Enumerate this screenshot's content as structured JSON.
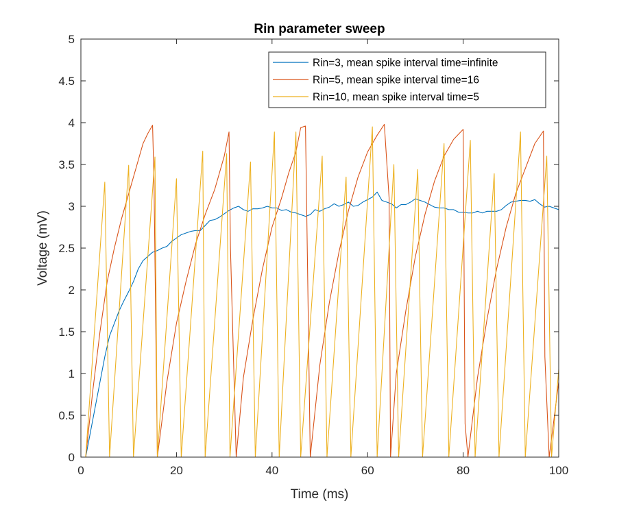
{
  "chart_data": {
    "type": "line",
    "title": "Rin parameter sweep",
    "xlabel": "Time (ms)",
    "ylabel": "Voltage (mV)",
    "xlim": [
      0,
      100
    ],
    "ylim": [
      0,
      5
    ],
    "x_ticks": [
      "0",
      "20",
      "40",
      "60",
      "80",
      "100"
    ],
    "y_ticks": [
      "0",
      "0.5",
      "1",
      "1.5",
      "2",
      "2.5",
      "3",
      "3.5",
      "4",
      "4.5",
      "5"
    ],
    "grid": false,
    "legend_position": "top-right",
    "series": [
      {
        "name": "Rin=3, mean spike interval time=infinite",
        "color": "#0072BD",
        "x": [
          1,
          2,
          3,
          4,
          5,
          6,
          7,
          8,
          9,
          10,
          11,
          12,
          13,
          14,
          15,
          16,
          17,
          18,
          19,
          20,
          21,
          22,
          23,
          24,
          25,
          26,
          27,
          28,
          29,
          30,
          31,
          32,
          33,
          34,
          35,
          36,
          37,
          38,
          39,
          40,
          41,
          42,
          43,
          44,
          45,
          46,
          47,
          48,
          49,
          50,
          51,
          52,
          53,
          54,
          55,
          56,
          57,
          58,
          59,
          60,
          61,
          62,
          63,
          64,
          65,
          66,
          67,
          68,
          69,
          70,
          71,
          72,
          73,
          74,
          75,
          76,
          77,
          78,
          79,
          80,
          81,
          82,
          83,
          84,
          85,
          86,
          87,
          88,
          89,
          90,
          91,
          92,
          93,
          94,
          95,
          96,
          97,
          98,
          99,
          100
        ],
        "values": [
          0,
          0.3,
          0.6,
          0.9,
          1.2,
          1.45,
          1.6,
          1.75,
          1.87,
          1.98,
          2.1,
          2.25,
          2.35,
          2.4,
          2.45,
          2.47,
          2.5,
          2.52,
          2.58,
          2.62,
          2.66,
          2.68,
          2.7,
          2.71,
          2.71,
          2.77,
          2.83,
          2.84,
          2.87,
          2.91,
          2.95,
          2.98,
          3.0,
          2.96,
          2.94,
          2.97,
          2.97,
          2.98,
          3.0,
          2.98,
          2.98,
          2.95,
          2.96,
          2.93,
          2.92,
          2.9,
          2.88,
          2.9,
          2.96,
          2.94,
          2.97,
          2.99,
          3.03,
          3.0,
          3.02,
          3.05,
          3.0,
          3.01,
          3.05,
          3.08,
          3.11,
          3.17,
          3.07,
          3.05,
          3.03,
          2.98,
          3.02,
          3.02,
          3.05,
          3.09,
          3.07,
          3.05,
          3.02,
          2.99,
          2.98,
          2.98,
          2.96,
          2.96,
          2.93,
          2.93,
          2.92,
          2.92,
          2.94,
          2.92,
          2.94,
          2.94,
          2.94,
          2.96,
          3.01,
          3.05,
          3.06,
          3.07,
          3.07,
          3.06,
          3.08,
          3.03,
          2.99,
          3.0,
          2.98,
          2.96
        ]
      },
      {
        "name": "Rin=5, mean spike interval time=16",
        "color": "#D95319",
        "x": [
          1,
          2.5,
          4,
          5.5,
          7,
          8.5,
          10,
          11.5,
          13,
          14,
          15,
          15.3,
          16,
          18,
          20,
          22,
          24,
          26,
          28,
          30,
          31,
          31.3,
          32.5,
          34,
          36,
          38,
          40,
          42,
          43.5,
          45,
          46,
          47,
          47.4,
          48,
          50,
          52,
          54,
          56,
          58,
          60,
          62,
          63.5,
          64.5,
          64.8,
          66,
          68,
          70,
          72,
          74,
          76,
          78,
          80,
          80.4,
          81,
          83,
          85,
          87,
          89,
          91,
          93,
          95,
          96.8,
          97.1,
          98,
          100
        ],
        "values": [
          0,
          0.8,
          1.5,
          2.1,
          2.5,
          2.85,
          3.15,
          3.45,
          3.75,
          3.87,
          3.97,
          3.3,
          0,
          0.9,
          1.6,
          2.1,
          2.55,
          2.9,
          3.2,
          3.6,
          3.89,
          2.5,
          0,
          0.95,
          1.65,
          2.25,
          2.75,
          3.1,
          3.4,
          3.65,
          3.94,
          3.96,
          2.4,
          0,
          1.1,
          1.85,
          2.45,
          2.95,
          3.35,
          3.65,
          3.85,
          3.98,
          3.1,
          0,
          1.0,
          1.75,
          2.4,
          2.9,
          3.3,
          3.6,
          3.8,
          3.92,
          0.4,
          0,
          0.95,
          1.65,
          2.25,
          2.75,
          3.15,
          3.45,
          3.75,
          3.9,
          1.2,
          0,
          0.9
        ]
      },
      {
        "name": "Rin=10, mean spike interval time=5",
        "color": "#EDB120",
        "x": [
          1,
          5,
          6,
          10,
          11,
          15.5,
          16,
          20,
          21,
          25.5,
          26,
          30.5,
          31.2,
          35.5,
          36.5,
          40.5,
          41.5,
          45,
          46,
          50.5,
          51.5,
          55.5,
          56.5,
          61,
          62,
          65.5,
          66.5,
          70.5,
          71.5,
          76,
          77,
          81.5,
          82.5,
          86.5,
          87.5,
          92,
          93,
          97.5,
          98.5,
          100
        ],
        "values": [
          0,
          3.29,
          0,
          3.49,
          0,
          3.59,
          0,
          3.33,
          0,
          3.66,
          0,
          3.63,
          0,
          3.53,
          0,
          3.89,
          0,
          3.89,
          0,
          3.6,
          0,
          3.35,
          0,
          3.95,
          0,
          3.5,
          0,
          3.44,
          0,
          3.75,
          0,
          3.79,
          0,
          3.39,
          0,
          3.89,
          0,
          3.6,
          0,
          1.05
        ]
      }
    ]
  }
}
